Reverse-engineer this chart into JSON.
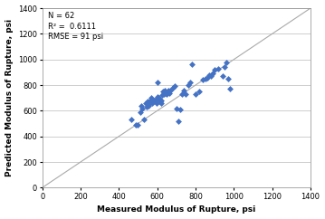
{
  "title": "",
  "xlabel": "Measured Modulus of Rupture, psi",
  "ylabel": "Predicted Modulus of Rupture, psi",
  "xlim": [
    0,
    1400
  ],
  "ylim": [
    0,
    1400
  ],
  "xticks": [
    0,
    200,
    400,
    600,
    800,
    1000,
    1200,
    1400
  ],
  "yticks": [
    0,
    200,
    400,
    600,
    800,
    1000,
    1200,
    1400
  ],
  "equality_line": [
    0,
    1400
  ],
  "marker": "D",
  "marker_color": "#4472C4",
  "marker_size": 3.5,
  "annotation_line1": "N = 62",
  "annotation_line2": "R² =  0.6111",
  "annotation_line3": "RMSE = 91 psi",
  "background_color": "#FFFFFF",
  "grid_color": "#BBBBBB",
  "xlabel_fontsize": 6.5,
  "ylabel_fontsize": 6.5,
  "tick_fontsize": 6,
  "annot_fontsize": 6,
  "scatter_x": [
    467,
    489,
    500,
    510,
    515,
    520,
    530,
    540,
    545,
    550,
    555,
    560,
    565,
    570,
    575,
    580,
    585,
    590,
    595,
    600,
    600,
    605,
    610,
    615,
    620,
    620,
    625,
    630,
    635,
    640,
    645,
    650,
    655,
    660,
    665,
    670,
    680,
    690,
    700,
    710,
    720,
    730,
    740,
    750,
    760,
    770,
    780,
    800,
    820,
    840,
    850,
    860,
    870,
    880,
    890,
    900,
    920,
    940,
    950,
    960,
    970,
    978
  ],
  "scatter_y": [
    535,
    490,
    490,
    590,
    640,
    620,
    530,
    660,
    630,
    670,
    640,
    660,
    680,
    700,
    660,
    670,
    680,
    690,
    660,
    820,
    710,
    700,
    690,
    670,
    680,
    660,
    720,
    750,
    730,
    760,
    740,
    730,
    750,
    760,
    740,
    760,
    780,
    790,
    620,
    520,
    610,
    730,
    760,
    730,
    800,
    820,
    960,
    730,
    750,
    840,
    850,
    860,
    880,
    870,
    890,
    920,
    930,
    870,
    940,
    980,
    850,
    770
  ]
}
